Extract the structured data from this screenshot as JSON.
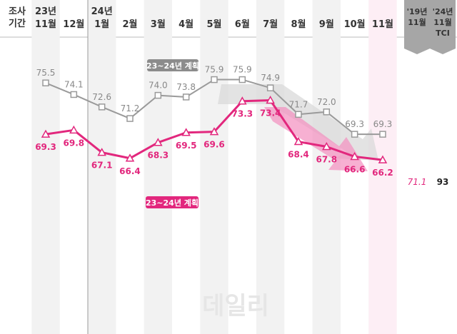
{
  "chart_data": {
    "type": "line",
    "header_left": [
      "조사",
      "기간"
    ],
    "categories": [
      {
        "top": "23년",
        "bottom": "11월"
      },
      {
        "top": "",
        "bottom": "12월"
      },
      {
        "top": "24년",
        "bottom": "1월"
      },
      {
        "top": "",
        "bottom": "2월"
      },
      {
        "top": "",
        "bottom": "3월"
      },
      {
        "top": "",
        "bottom": "4월"
      },
      {
        "top": "",
        "bottom": "5월"
      },
      {
        "top": "",
        "bottom": "6월"
      },
      {
        "top": "",
        "bottom": "7월"
      },
      {
        "top": "",
        "bottom": "8월"
      },
      {
        "top": "",
        "bottom": "9월"
      },
      {
        "top": "",
        "bottom": "10월"
      },
      {
        "top": "",
        "bottom": "11월"
      }
    ],
    "series": [
      {
        "name": "23~24년 계획",
        "color": "#9a9a9a",
        "labels": [
          "75.5",
          "74.1",
          "72.6",
          "71.2",
          "74.0",
          "73.8",
          "75.9",
          "75.9",
          "74.9",
          "71.7",
          "72.0",
          "69.3",
          "69.3"
        ],
        "values": [
          75.5,
          74.1,
          72.6,
          71.2,
          74.0,
          73.8,
          75.9,
          75.9,
          74.9,
          71.7,
          72.0,
          69.3,
          69.3
        ]
      },
      {
        "name": "23~24년 계획",
        "color": "#e2277d",
        "labels": [
          "69.3",
          "69.8",
          "67.1",
          "66.4",
          "68.3",
          "69.5",
          "69.6",
          "73.3",
          "73.4",
          "68.4",
          "67.8",
          "66.6",
          "66.2"
        ],
        "values": [
          69.3,
          69.8,
          67.1,
          66.4,
          68.3,
          69.5,
          69.6,
          73.3,
          73.4,
          68.4,
          67.8,
          66.6,
          66.2
        ]
      }
    ],
    "extra_columns": [
      {
        "header": [
          "'19년",
          "11월"
        ],
        "value": "71.1",
        "color": "#e2277d"
      },
      {
        "header": [
          "'24년",
          "11월",
          "TCI"
        ],
        "value": "93",
        "color": "#222222"
      }
    ],
    "watermark": "데일리"
  }
}
